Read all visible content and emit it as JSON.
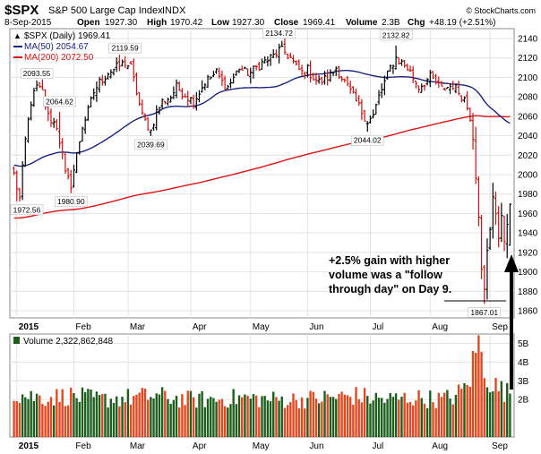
{
  "chart_data": {
    "type": "ohlc-bar",
    "header": {
      "symbol": "$SPX",
      "name": "S&P 500 Large Cap Index",
      "exchange": "INDX",
      "date": "8-Sep-2015",
      "open_label": "Open",
      "open": "1927.30",
      "high_label": "High",
      "high": "1970.42",
      "low_label": "Low",
      "low": "1927.30",
      "close_label": "Close",
      "close": "1969.41",
      "volume_label": "Volume",
      "volume": "2.3B",
      "chg_label": "Chg",
      "chg": "+48.19 (+2.51%)",
      "watermark": "© StockCharts.com"
    },
    "legend": {
      "price": "$SPX (Daily) 1969.41",
      "ma50": "MA(50) 2054.67",
      "ma200": "MA(200) 2072.50",
      "volume": "Volume 2,322,862,848"
    },
    "colors": {
      "up": "#000000",
      "down": "#cc1111",
      "ma50": "#1a237e",
      "ma200": "#e01010",
      "vol_up": "#1d5e1d",
      "vol_down": "#e2471f"
    },
    "price_axis": {
      "min": 1860,
      "max": 2140,
      "ticks": [
        1860,
        1880,
        1900,
        1920,
        1940,
        1960,
        1980,
        2000,
        2020,
        2040,
        2060,
        2080,
        2100,
        2120,
        2140
      ]
    },
    "volume_axis": {
      "max": 5.5,
      "ticks": [
        {
          "v": 2,
          "label": "2B"
        },
        {
          "v": 3,
          "label": "3B"
        },
        {
          "v": 4,
          "label": "4B"
        },
        {
          "v": 5,
          "label": "5B"
        }
      ]
    },
    "months": [
      {
        "label": "2015",
        "index": 1,
        "bold": true
      },
      {
        "label": "Feb",
        "index": 21,
        "bold": false
      },
      {
        "label": "Mar",
        "index": 40,
        "bold": false
      },
      {
        "label": "Apr",
        "index": 62,
        "bold": false
      },
      {
        "label": "May",
        "index": 83,
        "bold": false
      },
      {
        "label": "Jun",
        "index": 103,
        "bold": false
      },
      {
        "label": "Jul",
        "index": 125,
        "bold": false
      },
      {
        "label": "Aug",
        "index": 146,
        "bold": false
      },
      {
        "label": "Sep",
        "index": 167,
        "bold": false
      }
    ],
    "anchors": [
      [
        0,
        2000
      ],
      [
        2,
        1975
      ],
      [
        4,
        2035
      ],
      [
        6,
        2075
      ],
      [
        8,
        2090
      ],
      [
        10,
        2085
      ],
      [
        12,
        2060
      ],
      [
        15,
        2050
      ],
      [
        17,
        2020
      ],
      [
        18,
        2000
      ],
      [
        20,
        1990
      ],
      [
        22,
        2020
      ],
      [
        24,
        2050
      ],
      [
        26,
        2065
      ],
      [
        28,
        2085
      ],
      [
        30,
        2095
      ],
      [
        33,
        2105
      ],
      [
        36,
        2110
      ],
      [
        39,
        2115
      ],
      [
        41,
        2110
      ],
      [
        43,
        2085
      ],
      [
        45,
        2060
      ],
      [
        47,
        2050
      ],
      [
        48,
        2045
      ],
      [
        50,
        2065
      ],
      [
        52,
        2075
      ],
      [
        55,
        2080
      ],
      [
        57,
        2090
      ],
      [
        59,
        2085
      ],
      [
        61,
        2080
      ],
      [
        63,
        2075
      ],
      [
        65,
        2085
      ],
      [
        67,
        2095
      ],
      [
        69,
        2100
      ],
      [
        71,
        2105
      ],
      [
        73,
        2095
      ],
      [
        75,
        2090
      ],
      [
        77,
        2100
      ],
      [
        79,
        2110
      ],
      [
        81,
        2105
      ],
      [
        83,
        2105
      ],
      [
        85,
        2110
      ],
      [
        87,
        2115
      ],
      [
        89,
        2118
      ],
      [
        91,
        2122
      ],
      [
        93,
        2128
      ],
      [
        95,
        2126
      ],
      [
        97,
        2120
      ],
      [
        99,
        2110
      ],
      [
        101,
        2105
      ],
      [
        103,
        2108
      ],
      [
        105,
        2100
      ],
      [
        107,
        2095
      ],
      [
        109,
        2098
      ],
      [
        111,
        2102
      ],
      [
        113,
        2110
      ],
      [
        115,
        2100
      ],
      [
        117,
        2090
      ],
      [
        119,
        2080
      ],
      [
        121,
        2070
      ],
      [
        123,
        2060
      ],
      [
        124,
        2055
      ],
      [
        126,
        2060
      ],
      [
        128,
        2080
      ],
      [
        130,
        2095
      ],
      [
        132,
        2110
      ],
      [
        134,
        2120
      ],
      [
        136,
        2115
      ],
      [
        138,
        2110
      ],
      [
        140,
        2100
      ],
      [
        142,
        2090
      ],
      [
        144,
        2095
      ],
      [
        146,
        2100
      ],
      [
        148,
        2095
      ],
      [
        150,
        2088
      ],
      [
        152,
        2090
      ],
      [
        154,
        2092
      ],
      [
        156,
        2085
      ],
      [
        158,
        2078
      ],
      [
        160,
        2060
      ],
      [
        161,
        2040
      ],
      [
        162,
        2000
      ],
      [
        163,
        1960
      ],
      [
        164,
        1900
      ],
      [
        165,
        1880
      ],
      [
        166,
        1920
      ],
      [
        167,
        1945
      ],
      [
        168,
        1980
      ],
      [
        169,
        1960
      ],
      [
        170,
        1930
      ],
      [
        171,
        1960
      ],
      [
        172,
        1935
      ],
      [
        173,
        1945
      ],
      [
        174,
        1925
      ]
    ],
    "last_bar": {
      "o": 1927.3,
      "h": 1970.42,
      "l": 1927.3,
      "c": 1969.41,
      "vol": 2.32
    },
    "volume_profile": [
      [
        0,
        2.3
      ],
      [
        10,
        2.1
      ],
      [
        20,
        2.2
      ],
      [
        30,
        2.0
      ],
      [
        40,
        2.1
      ],
      [
        50,
        2.2
      ],
      [
        60,
        2.0
      ],
      [
        70,
        2.0
      ],
      [
        80,
        2.1
      ],
      [
        90,
        2.0
      ],
      [
        100,
        2.0
      ],
      [
        110,
        2.1
      ],
      [
        120,
        2.2
      ],
      [
        130,
        2.0
      ],
      [
        140,
        2.1
      ],
      [
        150,
        2.0
      ],
      [
        155,
        2.2
      ],
      [
        158,
        2.6
      ],
      [
        160,
        3.2
      ],
      [
        162,
        4.6
      ],
      [
        163,
        5.1
      ],
      [
        164,
        4.2
      ],
      [
        165,
        3.6
      ],
      [
        166,
        3.3
      ],
      [
        167,
        3.0
      ],
      [
        168,
        2.8
      ],
      [
        170,
        2.6
      ],
      [
        174,
        2.3
      ]
    ],
    "annotations": [
      {
        "label": "1972.56",
        "index": 1,
        "price": 1972.56
      },
      {
        "label": "2093.55",
        "index": 8,
        "price": 2093.55
      },
      {
        "label": "2064.62",
        "index": 16,
        "price": 2064.62
      },
      {
        "label": "1980.90",
        "index": 20,
        "price": 1980.9
      },
      {
        "label": "2119.59",
        "index": 39,
        "price": 2119.59
      },
      {
        "label": "2039.69",
        "index": 48,
        "price": 2039.69
      },
      {
        "label": "2134.72",
        "index": 93,
        "price": 2134.72
      },
      {
        "label": "2044.02",
        "index": 124,
        "price": 2044.02
      },
      {
        "label": "2132.82",
        "index": 134,
        "price": 2132.82
      },
      {
        "label": "1867.01",
        "index": 165,
        "price": 1867.01
      }
    ],
    "note": {
      "lines": [
        "+2.5% gain with higher",
        "volume was a \"follow",
        "through day\" on Day 9."
      ]
    }
  }
}
